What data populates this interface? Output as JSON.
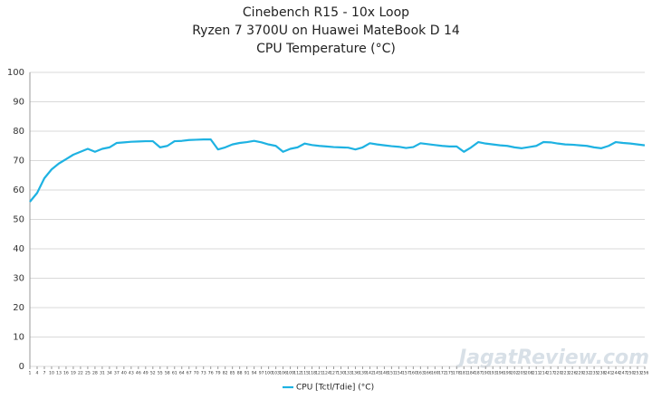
{
  "chart_data": {
    "type": "line",
    "title": [
      "Cinebench R15 - 10x Loop",
      "Ryzen 7 3700U on Huawei MateBook D 14",
      "CPU Temperature (°C)"
    ],
    "watermark": "JagatReview.com",
    "x": [
      1,
      4,
      7,
      10,
      13,
      16,
      19,
      22,
      25,
      28,
      31,
      34,
      37,
      40,
      43,
      46,
      49,
      52,
      55,
      58,
      61,
      64,
      67,
      70,
      73,
      76,
      79,
      82,
      85,
      88,
      91,
      94,
      97,
      100,
      103,
      106,
      109,
      112,
      115,
      118,
      121,
      124,
      127,
      130,
      133,
      136,
      139,
      142,
      145,
      148,
      151,
      154,
      157,
      160,
      163,
      166,
      169,
      172,
      175,
      178,
      181,
      184,
      187,
      190,
      193,
      196,
      199,
      202,
      205,
      208,
      211,
      214,
      217,
      220,
      223,
      226,
      229,
      232,
      235,
      238,
      241,
      244,
      247,
      250,
      253,
      256
    ],
    "series": [
      {
        "name": "CPU [Tctl/Tdie] (°C)",
        "color": "#1eb2e2",
        "values": [
          56,
          59,
          64,
          67,
          69,
          70.5,
          72,
          73,
          74,
          73,
          74,
          74.5,
          76,
          76.2,
          76.4,
          76.5,
          76.6,
          76.6,
          74.5,
          75,
          76.6,
          76.7,
          77,
          77.1,
          77.2,
          77.2,
          73.8,
          74.5,
          75.5,
          76,
          76.3,
          76.7,
          76.2,
          75.5,
          75,
          73,
          74,
          74.5,
          75.8,
          75.3,
          75,
          74.8,
          74.6,
          74.5,
          74.4,
          73.8,
          74.5,
          75.9,
          75.5,
          75.2,
          74.9,
          74.7,
          74.3,
          74.6,
          75.9,
          75.6,
          75.3,
          75,
          74.8,
          74.8,
          73,
          74.5,
          76.3,
          75.8,
          75.5,
          75.2,
          75,
          74.5,
          74.2,
          74.6,
          75,
          76.3,
          76.2,
          75.8,
          75.5,
          75.4,
          75.2,
          75,
          74.5,
          74.2,
          75,
          76.3,
          76,
          75.8,
          75.5,
          75.2
        ]
      }
    ],
    "xlim": [
      1,
      256
    ],
    "xticks": [
      1,
      4,
      7,
      10,
      13,
      16,
      19,
      22,
      25,
      28,
      31,
      34,
      37,
      40,
      43,
      46,
      49,
      52,
      55,
      58,
      61,
      64,
      67,
      70,
      73,
      76,
      79,
      82,
      85,
      88,
      91,
      94,
      97,
      100,
      103,
      106,
      109,
      112,
      115,
      118,
      121,
      124,
      127,
      130,
      133,
      136,
      139,
      142,
      145,
      148,
      151,
      154,
      157,
      160,
      163,
      166,
      169,
      172,
      175,
      178,
      181,
      184,
      187,
      190,
      193,
      196,
      199,
      202,
      205,
      208,
      211,
      214,
      217,
      220,
      223,
      226,
      229,
      232,
      235,
      238,
      241,
      244,
      247,
      250,
      253,
      256
    ],
    "ylim": [
      0,
      100
    ],
    "yticks": [
      0,
      10,
      20,
      30,
      40,
      50,
      60,
      70,
      80,
      90,
      100
    ],
    "grid": true,
    "legend": "bottom"
  }
}
